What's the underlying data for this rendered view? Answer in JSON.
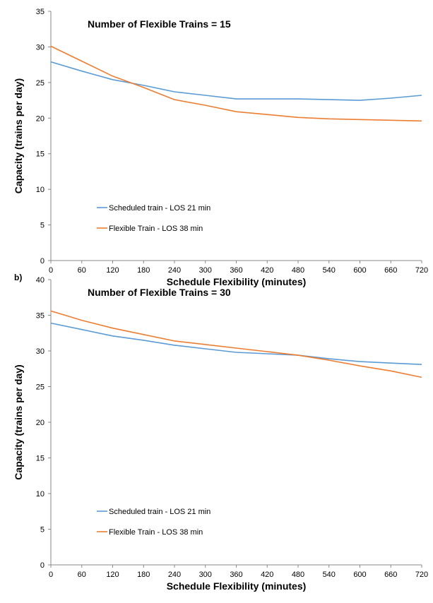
{
  "chart_data": [
    {
      "type": "line",
      "panel_label": "",
      "title": "Number of Flexible Trains = 15",
      "xlabel": "Schedule Flexibility (minutes)",
      "ylabel": "Capacity (trains per day)",
      "xlim": [
        0,
        720
      ],
      "ylim": [
        0,
        35
      ],
      "xticks": [
        0,
        60,
        120,
        180,
        240,
        300,
        360,
        420,
        480,
        540,
        600,
        660,
        720
      ],
      "yticks": [
        0,
        5,
        10,
        15,
        20,
        25,
        30,
        35
      ],
      "grid": false,
      "legend_position": "left",
      "series": [
        {
          "name": "Scheduled train - LOS 21 min",
          "color": "#5b9bd5",
          "x": [
            0,
            60,
            120,
            180,
            240,
            300,
            360,
            420,
            480,
            540,
            600,
            660,
            720
          ],
          "y": [
            27.9,
            26.6,
            25.4,
            24.6,
            23.7,
            23.2,
            22.7,
            22.7,
            22.7,
            22.6,
            22.5,
            22.8,
            23.2
          ]
        },
        {
          "name": "Flexible Train - LOS 38 min",
          "color": "#ed7d31",
          "x": [
            0,
            60,
            120,
            180,
            240,
            300,
            360,
            420,
            480,
            540,
            600,
            660,
            720
          ],
          "y": [
            30.1,
            28.0,
            25.9,
            24.3,
            22.6,
            21.8,
            20.9,
            20.5,
            20.1,
            19.9,
            19.8,
            19.7,
            19.6
          ]
        }
      ]
    },
    {
      "type": "line",
      "panel_label": "b)",
      "title": "Number of Flexible Trains = 30",
      "xlabel": "Schedule Flexibility (minutes)",
      "ylabel": "Capacity (trains per day)",
      "xlim": [
        0,
        720
      ],
      "ylim": [
        0,
        40
      ],
      "xticks": [
        0,
        60,
        120,
        180,
        240,
        300,
        360,
        420,
        480,
        540,
        600,
        660,
        720
      ],
      "yticks": [
        0,
        5,
        10,
        15,
        20,
        25,
        30,
        35,
        40
      ],
      "grid": false,
      "legend_position": "left",
      "series": [
        {
          "name": "Scheduled train - LOS 21 min",
          "color": "#5b9bd5",
          "x": [
            0,
            60,
            120,
            180,
            240,
            300,
            360,
            420,
            480,
            540,
            600,
            660,
            720
          ],
          "y": [
            33.9,
            33.0,
            32.1,
            31.5,
            30.8,
            30.3,
            29.8,
            29.6,
            29.4,
            28.9,
            28.5,
            28.3,
            28.1
          ]
        },
        {
          "name": "Flexible Train - LOS 38 min",
          "color": "#ed7d31",
          "x": [
            0,
            60,
            120,
            180,
            240,
            300,
            360,
            420,
            480,
            540,
            600,
            660,
            720
          ],
          "y": [
            35.6,
            34.3,
            33.2,
            32.3,
            31.4,
            30.9,
            30.4,
            29.9,
            29.4,
            28.7,
            27.9,
            27.2,
            26.3
          ]
        }
      ]
    }
  ]
}
